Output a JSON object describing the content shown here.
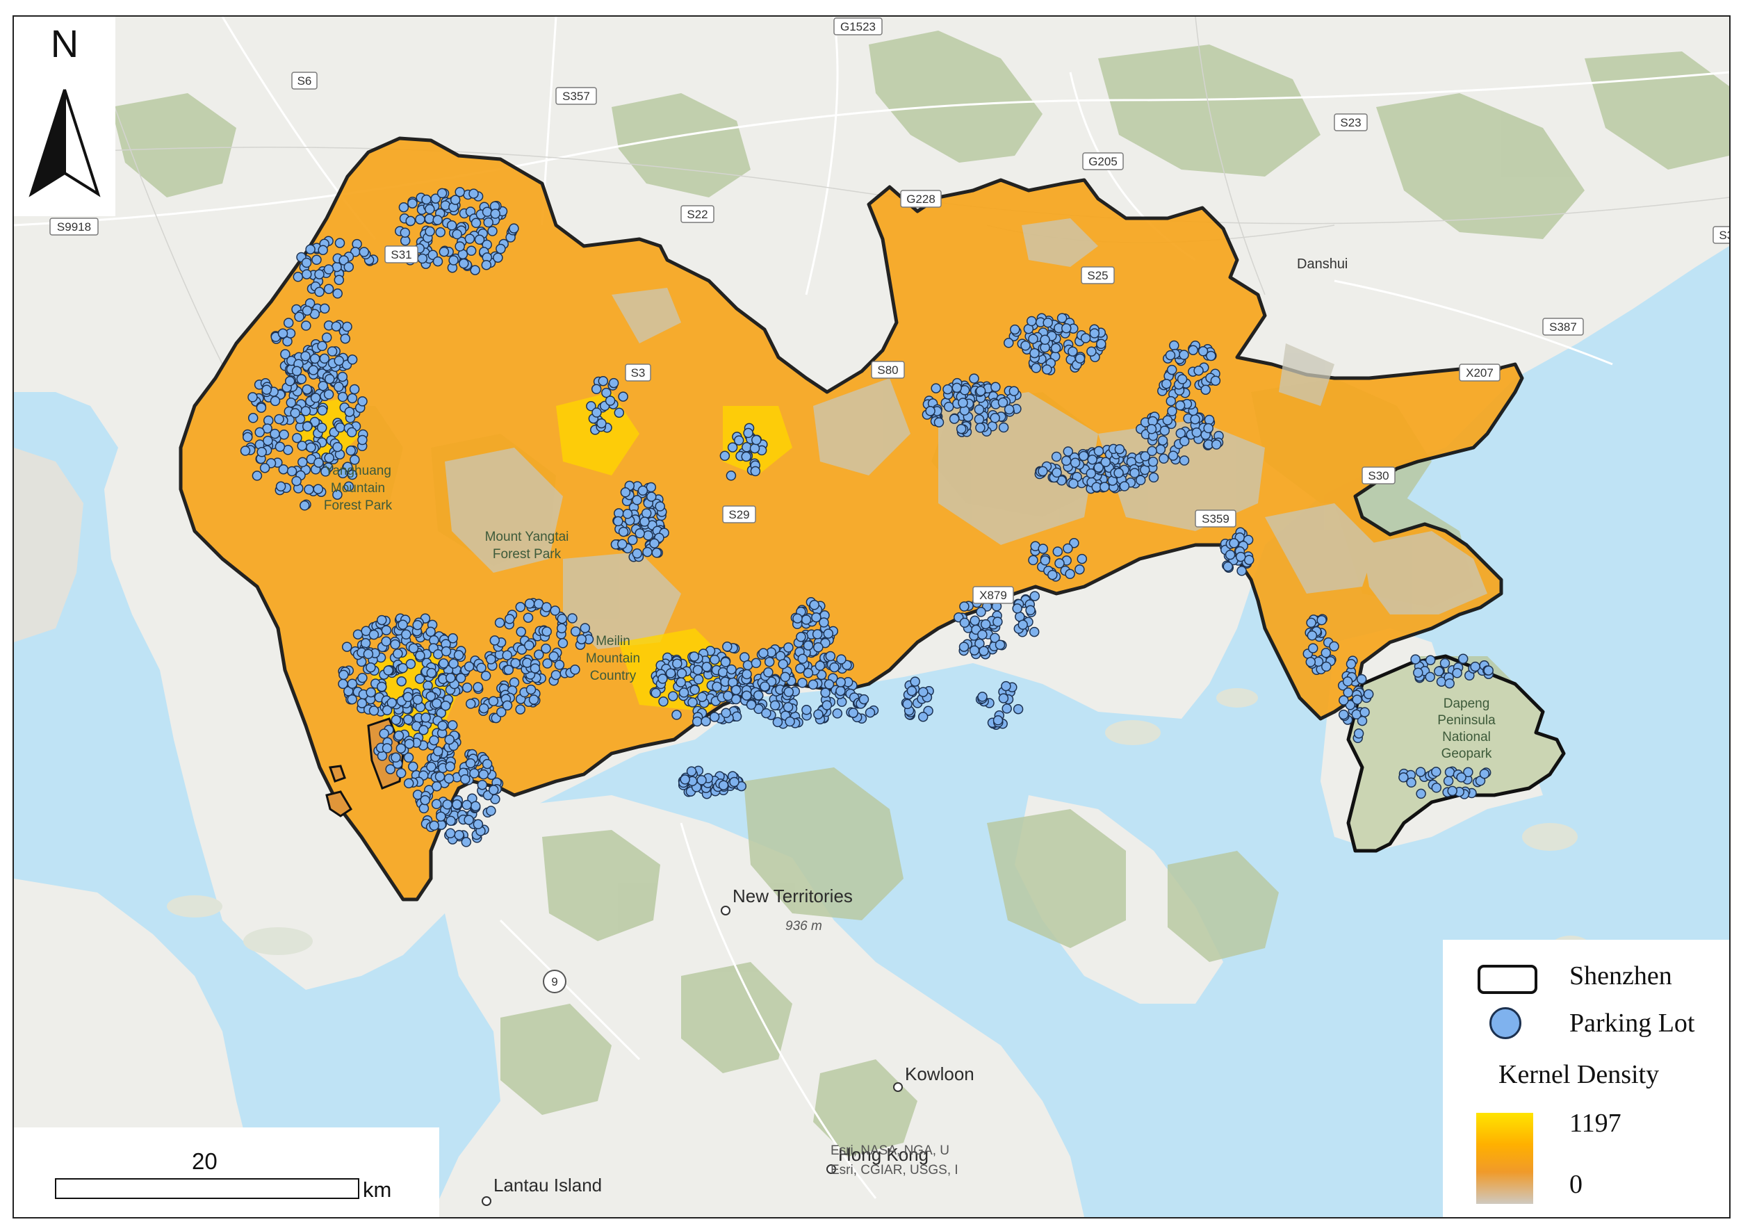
{
  "compass": {
    "letter": "N"
  },
  "scale_bar": {
    "value": "20",
    "unit": "km"
  },
  "legend": {
    "boundary_label": "Shenzhen",
    "parking_label": "Parking Lot",
    "density_title": "Kernel Density",
    "density_max": "1197",
    "density_min": "0",
    "colors": {
      "boundary": "#111111",
      "parking_fill": "#7fb2ee",
      "parking_stroke": "#1c3150",
      "density_high": "#ffe400",
      "density_mid": "#ffb000",
      "density_low": "#cfc9c0"
    }
  },
  "places": {
    "new_territories": "New Territories",
    "elevation": "936 m",
    "kowloon": "Kowloon",
    "hong_kong": "Hong Kong",
    "lantau": "Lantau Island",
    "danshui": "Danshui"
  },
  "parks": {
    "yanghuang": [
      "Yanghuang",
      "Mountain",
      "Forest Park"
    ],
    "yangtai": [
      "Mount Yangtai",
      "Forest Park"
    ],
    "meilin": [
      "Meilin",
      "Mountain",
      "Country"
    ],
    "dapeng": [
      "Dapeng",
      "Peninsula",
      "National",
      "Geopark"
    ]
  },
  "roads": {
    "g1523": "G1523",
    "s6": "S6",
    "s357": "S357",
    "s23": "S23",
    "g205": "G205",
    "g228": "G228",
    "s22": "S22",
    "s9918": "S9918",
    "s31": "S31",
    "s25": "S25",
    "s387": "S387",
    "x207": "X207",
    "s30_right": "S30",
    "s30": "S30",
    "s29": "S29",
    "s359": "S359",
    "x879": "X879",
    "r9": "9",
    "s80": "S80",
    "s3": "S3"
  },
  "attribution": {
    "line1": "Esri, NASA, NGA, U",
    "line2": "Esri, CGIAR, USGS, I"
  }
}
